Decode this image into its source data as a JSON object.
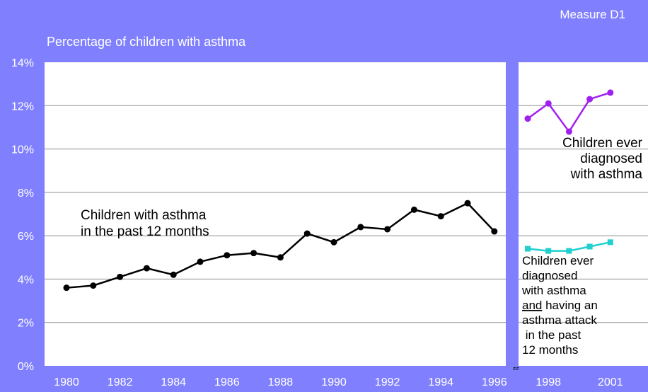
{
  "header": {
    "measure": "Measure D1"
  },
  "chart_data": {
    "type": "line",
    "title": "Percentage of children with asthma",
    "ylim": [
      0,
      14
    ],
    "y_ticks": [
      "0%",
      "2%",
      "4%",
      "6%",
      "8%",
      "10%",
      "12%",
      "14%"
    ],
    "x_ticks": [
      "1980",
      "1982",
      "1984",
      "1986",
      "1988",
      "1990",
      "1992",
      "1994",
      "1996",
      "1998",
      "2001"
    ],
    "grid": true,
    "series": [
      {
        "key": "past12",
        "label_lines": [
          "Children with asthma",
          "in the past 12 months"
        ],
        "color": "#000000",
        "marker": "circle",
        "points": [
          {
            "x": "1980",
            "y": 3.6
          },
          {
            "x": "1981",
            "y": 3.7
          },
          {
            "x": "1982",
            "y": 4.1
          },
          {
            "x": "1983",
            "y": 4.5
          },
          {
            "x": "1984",
            "y": 4.2
          },
          {
            "x": "1985",
            "y": 4.8
          },
          {
            "x": "1986",
            "y": 5.1
          },
          {
            "x": "1987",
            "y": 5.2
          },
          {
            "x": "1988",
            "y": 5.0
          },
          {
            "x": "1989",
            "y": 6.1
          },
          {
            "x": "1990",
            "y": 5.7
          },
          {
            "x": "1991",
            "y": 6.4
          },
          {
            "x": "1992",
            "y": 6.3
          },
          {
            "x": "1993",
            "y": 7.2
          },
          {
            "x": "1994",
            "y": 6.9
          },
          {
            "x": "1995",
            "y": 7.5
          },
          {
            "x": "1996",
            "y": 6.2
          }
        ]
      },
      {
        "key": "ever",
        "label_lines": [
          "Children ever",
          "diagnosed",
          "with asthma"
        ],
        "color": "#a020f0",
        "marker": "circle",
        "points": [
          {
            "x": "1997",
            "y": 11.4
          },
          {
            "x": "1998",
            "y": 12.1
          },
          {
            "x": "1999",
            "y": 10.8
          },
          {
            "x": "2000",
            "y": 12.3
          },
          {
            "x": "2001",
            "y": 12.6
          }
        ]
      },
      {
        "key": "attack",
        "label_lines": [
          "Children ever",
          "diagnosed",
          "with asthma",
          "and having an",
          "asthma attack",
          " in the past",
          "12 months"
        ],
        "color": "#20d0d0",
        "marker": "square",
        "points": [
          {
            "x": "1997",
            "y": 5.4
          },
          {
            "x": "1998",
            "y": 5.3
          },
          {
            "x": "1999",
            "y": 5.3
          },
          {
            "x": "2000",
            "y": 5.5
          },
          {
            "x": "2001",
            "y": 5.7
          }
        ]
      }
    ]
  }
}
